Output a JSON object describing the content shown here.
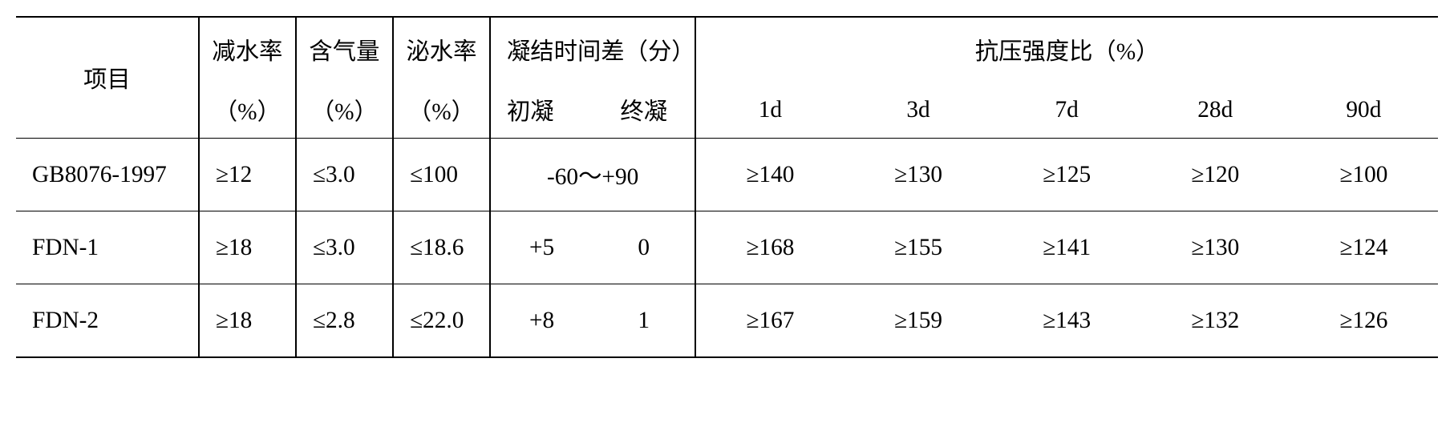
{
  "table": {
    "font_size_pt": 22,
    "text_color": "#000000",
    "background_color": "#ffffff",
    "border_color": "#000000",
    "header": {
      "item": "项目",
      "water_reduce": "减水率",
      "air_content": "含气量",
      "bleeding": "泌水率",
      "setting_diff": "凝结时间差（分）",
      "setting_initial": "初凝",
      "setting_final": "终凝",
      "strength_ratio": "抗压强度比（%）",
      "pct": "（%）",
      "d1": "1d",
      "d3": "3d",
      "d7": "7d",
      "d28": "28d",
      "d90": "90d"
    },
    "rows": [
      {
        "item": "GB8076-1997",
        "water_reduce": "≥12",
        "air_content": "≤3.0",
        "bleeding": "≤100",
        "set_initial": "-60～+90",
        "set_final": "",
        "set_merged": true,
        "s1": "≥140",
        "s3": "≥130",
        "s7": "≥125",
        "s28": "≥120",
        "s90": "≥100"
      },
      {
        "item": "FDN-1",
        "water_reduce": "≥18",
        "air_content": "≤3.0",
        "bleeding": "≤18.6",
        "set_initial": "+5",
        "set_final": "0",
        "set_merged": false,
        "s1": "≥168",
        "s3": "≥155",
        "s7": "≥141",
        "s28": "≥130",
        "s90": "≥124"
      },
      {
        "item": "FDN-2",
        "water_reduce": "≥18",
        "air_content": "≤2.8",
        "bleeding": "≤22.0",
        "set_initial": "+8",
        "set_final": "1",
        "set_merged": false,
        "s1": "≥167",
        "s3": "≥159",
        "s7": "≥143",
        "s28": "≥132",
        "s90": "≥126"
      }
    ]
  }
}
